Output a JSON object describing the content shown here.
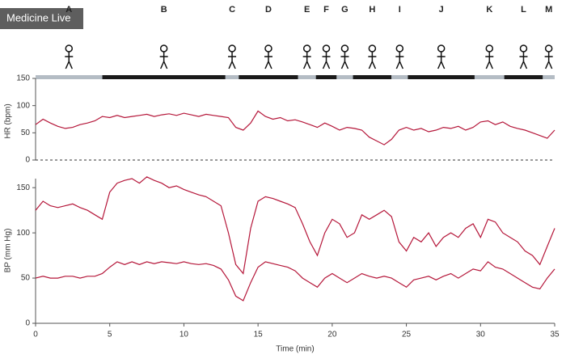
{
  "watermark": "Medicine Live",
  "phases": [
    {
      "label": "A",
      "start": 0,
      "end": 4.5,
      "color": "#b4bcc4"
    },
    {
      "label": "B",
      "start": 4.5,
      "end": 12.8,
      "color": "#1a1a1a"
    },
    {
      "label": "C",
      "start": 12.8,
      "end": 13.7,
      "color": "#b4bcc4"
    },
    {
      "label": "D",
      "start": 13.7,
      "end": 17.7,
      "color": "#1a1a1a"
    },
    {
      "label": "E",
      "start": 17.7,
      "end": 18.9,
      "color": "#b4bcc4"
    },
    {
      "label": "F",
      "start": 18.9,
      "end": 20.3,
      "color": "#1a1a1a"
    },
    {
      "label": "G",
      "start": 20.3,
      "end": 21.4,
      "color": "#b4bcc4"
    },
    {
      "label": "H",
      "start": 21.4,
      "end": 24.0,
      "color": "#1a1a1a"
    },
    {
      "label": "I",
      "start": 24.0,
      "end": 25.1,
      "color": "#b4bcc4"
    },
    {
      "label": "J",
      "start": 25.1,
      "end": 29.6,
      "color": "#1a1a1a"
    },
    {
      "label": "K",
      "start": 29.6,
      "end": 31.6,
      "color": "#b4bcc4"
    },
    {
      "label": "L",
      "start": 31.6,
      "end": 34.2,
      "color": "#1a1a1a"
    },
    {
      "label": "M",
      "start": 34.2,
      "end": 35,
      "color": "#b4bcc4"
    }
  ],
  "chart_data": [
    {
      "type": "line",
      "ylabel": "HR (bpm)",
      "xlim": [
        0,
        35
      ],
      "ylim": [
        0,
        150
      ],
      "yticks": [
        0,
        50,
        100,
        150
      ],
      "zero_line": "dashed",
      "x": [
        0,
        0.5,
        1,
        1.5,
        2,
        2.5,
        3,
        3.5,
        4,
        4.5,
        5,
        5.5,
        6,
        6.5,
        7,
        7.5,
        8,
        8.5,
        9,
        9.5,
        10,
        10.5,
        11,
        11.5,
        12,
        12.5,
        13,
        13.5,
        14,
        14.5,
        15,
        15.5,
        16,
        16.5,
        17,
        17.5,
        18,
        18.5,
        19,
        19.5,
        20,
        20.5,
        21,
        21.5,
        22,
        22.5,
        23,
        23.5,
        24,
        24.5,
        25,
        25.5,
        26,
        26.5,
        27,
        27.5,
        28,
        28.5,
        29,
        29.5,
        30,
        30.5,
        31,
        31.5,
        32,
        32.5,
        33,
        33.5,
        34,
        34.5,
        35
      ],
      "series": [
        {
          "color": "#b5173a",
          "values": [
            65,
            75,
            68,
            62,
            58,
            60,
            65,
            68,
            72,
            80,
            78,
            82,
            78,
            80,
            82,
            84,
            80,
            83,
            85,
            82,
            86,
            83,
            80,
            84,
            82,
            80,
            78,
            60,
            55,
            68,
            90,
            80,
            75,
            78,
            72,
            74,
            70,
            65,
            60,
            68,
            62,
            55,
            60,
            58,
            55,
            42,
            35,
            28,
            38,
            55,
            60,
            55,
            58,
            52,
            55,
            60,
            58,
            62,
            55,
            60,
            70,
            72,
            65,
            70,
            62,
            58,
            55,
            50,
            45,
            40,
            55
          ]
        }
      ]
    },
    {
      "type": "line",
      "ylabel": "BP (mm Hg)",
      "xlabel": "Time (min)",
      "xlim": [
        0,
        35
      ],
      "xticks": [
        0,
        5,
        10,
        15,
        20,
        25,
        30,
        35
      ],
      "ylim": [
        0,
        160
      ],
      "yticks": [
        0,
        50,
        100,
        150
      ],
      "x": [
        0,
        0.5,
        1,
        1.5,
        2,
        2.5,
        3,
        3.5,
        4,
        4.5,
        5,
        5.5,
        6,
        6.5,
        7,
        7.5,
        8,
        8.5,
        9,
        9.5,
        10,
        10.5,
        11,
        11.5,
        12,
        12.5,
        13,
        13.5,
        14,
        14.5,
        15,
        15.5,
        16,
        16.5,
        17,
        17.5,
        18,
        18.5,
        19,
        19.5,
        20,
        20.5,
        21,
        21.5,
        22,
        22.5,
        23,
        23.5,
        24,
        24.5,
        25,
        25.5,
        26,
        26.5,
        27,
        27.5,
        28,
        28.5,
        29,
        29.5,
        30,
        30.5,
        31,
        31.5,
        32,
        32.5,
        33,
        33.5,
        34,
        34.5,
        35
      ],
      "series": [
        {
          "color": "#b5173a",
          "values": [
            125,
            135,
            130,
            128,
            130,
            132,
            128,
            125,
            120,
            115,
            145,
            155,
            158,
            160,
            155,
            162,
            158,
            155,
            150,
            152,
            148,
            145,
            142,
            140,
            135,
            130,
            100,
            65,
            55,
            105,
            135,
            140,
            138,
            135,
            132,
            128,
            110,
            90,
            75,
            100,
            115,
            110,
            95,
            100,
            120,
            115,
            120,
            125,
            118,
            90,
            80,
            95,
            90,
            100,
            85,
            95,
            100,
            95,
            105,
            110,
            95,
            115,
            112,
            100,
            95,
            90,
            80,
            75,
            65,
            85,
            105
          ]
        },
        {
          "color": "#b5173a",
          "values": [
            50,
            52,
            50,
            50,
            52,
            52,
            50,
            52,
            52,
            55,
            62,
            68,
            65,
            68,
            65,
            68,
            66,
            68,
            67,
            66,
            68,
            66,
            65,
            66,
            64,
            60,
            48,
            30,
            25,
            45,
            62,
            68,
            66,
            64,
            62,
            58,
            50,
            45,
            40,
            50,
            55,
            50,
            45,
            50,
            55,
            52,
            50,
            52,
            50,
            45,
            40,
            48,
            50,
            52,
            48,
            52,
            55,
            50,
            55,
            60,
            58,
            68,
            62,
            60,
            55,
            50,
            45,
            40,
            38,
            50,
            60
          ]
        }
      ]
    }
  ]
}
